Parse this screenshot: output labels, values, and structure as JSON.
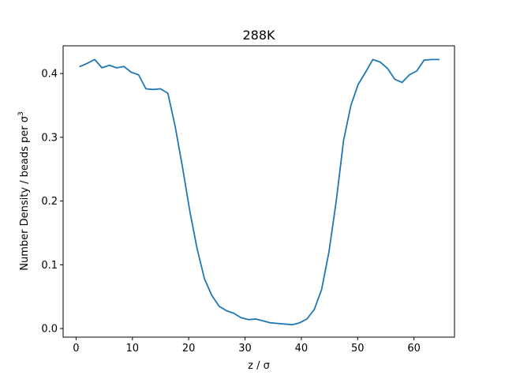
{
  "chart_data": {
    "type": "line",
    "title": "288K",
    "xlabel": "z / σ",
    "ylabel_prefix": "Number Density / beads per σ",
    "ylabel_superscript": "3",
    "xlim": [
      -2.3,
      67.2
    ],
    "ylim": [
      -0.0135,
      0.4435
    ],
    "xticks": [
      0,
      10,
      20,
      30,
      40,
      50,
      60
    ],
    "yticks": [
      0.0,
      0.1,
      0.2,
      0.3,
      0.4
    ],
    "xtick_labels": [
      "0",
      "10",
      "20",
      "30",
      "40",
      "50",
      "60"
    ],
    "ytick_labels": [
      "0.0",
      "0.1",
      "0.2",
      "0.3",
      "0.4"
    ],
    "grid": false,
    "series": [
      {
        "color": "#1f77b4",
        "x": [
          0.7,
          2.0,
          3.3,
          4.6,
          5.9,
          7.2,
          8.5,
          9.8,
          11.1,
          12.4,
          13.7,
          15.0,
          16.3,
          17.6,
          18.9,
          20.2,
          21.5,
          22.8,
          24.1,
          25.4,
          26.7,
          28.0,
          29.3,
          30.6,
          31.9,
          33.2,
          34.5,
          35.8,
          37.1,
          38.4,
          39.7,
          41.0,
          42.3,
          43.6,
          44.9,
          46.2,
          47.5,
          48.8,
          50.1,
          51.4,
          52.7,
          54.0,
          55.3,
          56.6,
          57.9,
          59.2,
          60.5,
          61.8,
          63.1,
          64.4
        ],
        "y": [
          0.411,
          0.416,
          0.422,
          0.409,
          0.413,
          0.409,
          0.411,
          0.402,
          0.398,
          0.376,
          0.375,
          0.376,
          0.369,
          0.317,
          0.253,
          0.184,
          0.125,
          0.078,
          0.052,
          0.035,
          0.028,
          0.024,
          0.017,
          0.014,
          0.015,
          0.012,
          0.009,
          0.008,
          0.007,
          0.006,
          0.009,
          0.015,
          0.03,
          0.061,
          0.12,
          0.2,
          0.295,
          0.35,
          0.383,
          0.402,
          0.422,
          0.418,
          0.408,
          0.391,
          0.386,
          0.398,
          0.404,
          0.421,
          0.422,
          0.422
        ]
      }
    ]
  }
}
